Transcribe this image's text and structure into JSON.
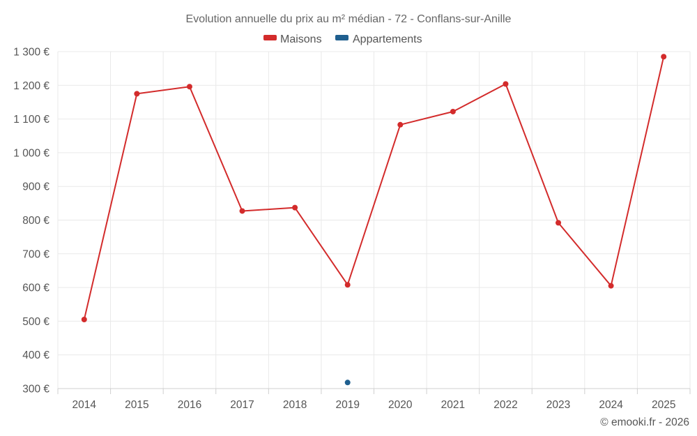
{
  "chart_data": {
    "type": "line",
    "title": "Evolution annuelle du prix au m² médian - 72 - Conflans-sur-Anille",
    "categories": [
      "2014",
      "2015",
      "2016",
      "2017",
      "2018",
      "2019",
      "2020",
      "2021",
      "2022",
      "2023",
      "2024",
      "2025"
    ],
    "y_ticks": [
      300,
      400,
      500,
      600,
      700,
      800,
      900,
      1000,
      1100,
      1200,
      1300
    ],
    "y_tick_labels": [
      "300 €",
      "400 €",
      "500 €",
      "600 €",
      "700 €",
      "800 €",
      "900 €",
      "1 000 €",
      "1 100 €",
      "1 200 €",
      "1 300 €"
    ],
    "ylim": [
      300,
      1300
    ],
    "grid": true,
    "legend_position": "top-center",
    "series": [
      {
        "name": "Maisons",
        "color": "#d32b2b",
        "values": [
          505,
          1175,
          1196,
          827,
          837,
          608,
          1083,
          1122,
          1204,
          792,
          605,
          1285
        ]
      },
      {
        "name": "Appartements",
        "color": "#1f5f8f",
        "values": [
          null,
          null,
          null,
          null,
          null,
          318,
          null,
          null,
          null,
          null,
          null,
          null
        ]
      }
    ],
    "credit": "© emooki.fr - 2026"
  }
}
